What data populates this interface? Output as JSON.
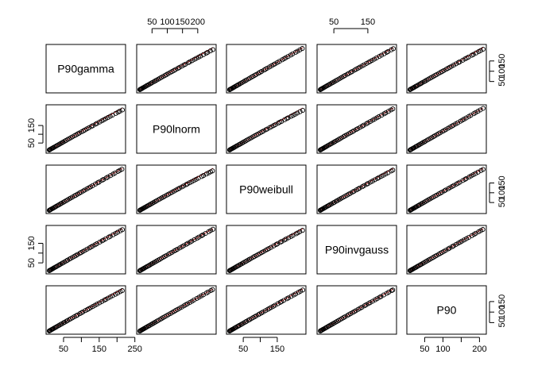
{
  "chart_data": {
    "type": "scatter",
    "layout": "pairs-matrix",
    "variables": [
      "P90gamma",
      "P90lnorm",
      "P90weibull",
      "P90invgauss",
      "P90"
    ],
    "axes": {
      "P90gamma": {
        "range": [
          10,
          215
        ],
        "ticks": [
          50,
          100,
          150,
          200
        ],
        "tick_labels": [
          "50",
          "100",
          "150",
          "200"
        ]
      },
      "P90lnorm": {
        "range": [
          10,
          250
        ],
        "ticks": [
          50,
          150,
          250
        ],
        "tick_labels": [
          "50",
          "150",
          "250"
        ]
      },
      "P90weibull": {
        "range": [
          10,
          225
        ],
        "ticks": [
          50,
          150
        ],
        "tick_labels": [
          "50",
          "150"
        ]
      },
      "P90invgauss": {
        "range": [
          10,
          225
        ],
        "ticks": [
          50,
          150
        ],
        "tick_labels": [
          "50",
          "150"
        ]
      },
      "P90": {
        "range": [
          10,
          210
        ],
        "ticks": [
          50,
          100,
          150,
          200
        ],
        "tick_labels": [
          "50",
          "100",
          "150",
          "200"
        ]
      }
    },
    "top_axes": [
      {
        "column": 1,
        "variable": "P90lnorm",
        "ticks": [
          50,
          100,
          150,
          200
        ],
        "tick_labels": [
          "50",
          "100",
          "150",
          "200"
        ]
      },
      {
        "column": 3,
        "variable": "P90invgauss",
        "ticks": [
          50,
          150
        ],
        "tick_labels": [
          "50",
          "150"
        ]
      }
    ],
    "bottom_axes": [
      {
        "column": 0,
        "variable": "P90gamma",
        "ticks": [
          50,
          100,
          150,
          200,
          250
        ],
        "tick_labels": [
          "50",
          "150",
          "250"
        ]
      },
      {
        "column": 2,
        "variable": "P90weibull",
        "ticks": [
          50,
          100,
          150
        ],
        "tick_labels": [
          "50",
          "150"
        ]
      },
      {
        "column": 4,
        "variable": "P90",
        "ticks": [
          50,
          100,
          150,
          200
        ],
        "tick_labels": [
          "50",
          "100",
          "200"
        ]
      }
    ],
    "left_axes": [
      {
        "row": 1,
        "variable": "P90lnorm",
        "ticks": [
          50,
          100,
          150
        ],
        "tick_labels": [
          "50",
          "150"
        ]
      },
      {
        "row": 3,
        "variable": "P90invgauss",
        "ticks": [
          50,
          100,
          150
        ],
        "tick_labels": [
          "50",
          "150"
        ]
      }
    ],
    "right_axes": [
      {
        "row": 0,
        "variable": "P90gamma",
        "ticks": [
          50,
          100,
          150
        ],
        "tick_labels": [
          "50",
          "100",
          "150"
        ]
      },
      {
        "row": 2,
        "variable": "P90weibull",
        "ticks": [
          50,
          100,
          150
        ],
        "tick_labels": [
          "50",
          "100",
          "150"
        ]
      },
      {
        "row": 4,
        "variable": "P90",
        "ticks": [
          50,
          100,
          150
        ],
        "tick_labels": [
          "50",
          "100",
          "150"
        ]
      }
    ],
    "point_style": {
      "shape": "open-circle",
      "color": "#000000"
    },
    "fit_line": {
      "type": "y = x reference",
      "color": "#d62728"
    },
    "grid": false,
    "legend": "none",
    "title": ""
  },
  "curvature": [
    [
      0,
      0.15,
      0.05,
      0.08,
      0.12
    ],
    [
      0.15,
      0,
      0.18,
      0.05,
      0.03
    ],
    [
      0.05,
      0.18,
      0,
      0.12,
      0.08
    ],
    [
      0.08,
      0.05,
      0.12,
      0,
      0.05
    ],
    [
      0.12,
      0.03,
      0.08,
      0.05,
      0
    ]
  ],
  "palette": {
    "points": "#000000",
    "line": "#d62728",
    "frame": "#000000",
    "text": "#000000"
  }
}
